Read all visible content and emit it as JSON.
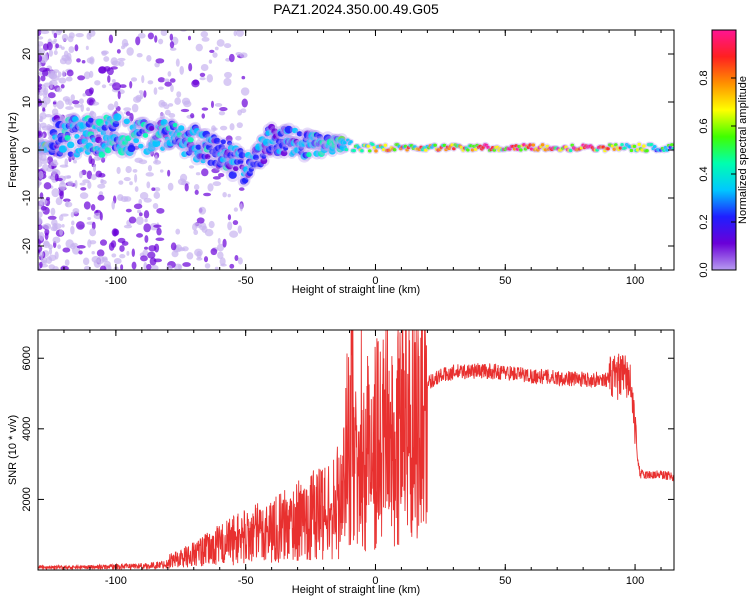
{
  "title": "PAZ1.2024.350.00.49.G05",
  "chart_data": [
    {
      "type": "heatmap",
      "xlabel": "Height of straight line (km)",
      "ylabel": "Frequency (Hz)",
      "xlim": [
        -130,
        115
      ],
      "ylim": [
        -25,
        25
      ],
      "x_ticks": [
        -100,
        -50,
        0,
        50,
        100
      ],
      "y_ticks": [
        -20,
        -10,
        0,
        10,
        20
      ],
      "colorbar": {
        "label": "Normalized spectral amplitude",
        "range": [
          0,
          1
        ],
        "ticks": [
          "0.0",
          "0.2",
          "0.4",
          "0.6",
          "0.8"
        ],
        "palette": [
          "#b79cf0",
          "#6a00d8",
          "#1f1fff",
          "#00c8ff",
          "#00ffb0",
          "#40ff00",
          "#ffff00",
          "#ff9000",
          "#ff2020",
          "#ff1493"
        ]
      },
      "ridge": [
        {
          "x": -125,
          "freq": 3,
          "spread": 4,
          "amp": 0.35
        },
        {
          "x": -100,
          "freq": 3,
          "spread": 4,
          "amp": 0.4
        },
        {
          "x": -80,
          "freq": 3,
          "spread": 3,
          "amp": 0.35
        },
        {
          "x": -60,
          "freq": 0,
          "spread": 3.5,
          "amp": 0.35
        },
        {
          "x": -50,
          "freq": -4,
          "spread": 3,
          "amp": 0.3
        },
        {
          "x": -40,
          "freq": 2,
          "spread": 3,
          "amp": 0.3
        },
        {
          "x": -25,
          "freq": 1,
          "spread": 2.5,
          "amp": 0.35
        },
        {
          "x": -12,
          "freq": 1,
          "spread": 1.2,
          "amp": 0.5
        },
        {
          "x": 0,
          "freq": 0.5,
          "spread": 0.8,
          "amp": 0.65
        },
        {
          "x": 20,
          "freq": 0.5,
          "spread": 0.6,
          "amp": 0.75
        },
        {
          "x": 50,
          "freq": 0.5,
          "spread": 0.6,
          "amp": 0.9
        },
        {
          "x": 80,
          "freq": 0.5,
          "spread": 0.6,
          "amp": 0.95
        },
        {
          "x": 100,
          "freq": 0.5,
          "spread": 0.7,
          "amp": 0.6
        },
        {
          "x": 115,
          "freq": 0.5,
          "spread": 0.7,
          "amp": 0.5
        }
      ]
    },
    {
      "type": "line",
      "xlabel": "Height of straight line (km)",
      "ylabel": "SNR (10 * v/v)",
      "xlim": [
        -130,
        115
      ],
      "ylim": [
        0,
        6800
      ],
      "x_ticks": [
        -100,
        -50,
        0,
        50,
        100
      ],
      "y_ticks": [
        2000,
        4000,
        6000
      ],
      "series": [
        {
          "color": "#e8302f",
          "x": [
            -130,
            -115,
            -100,
            -85,
            -75,
            -65,
            -55,
            -45,
            -35,
            -25,
            -20,
            -15,
            -12,
            -10,
            -9,
            -7,
            -5,
            -3,
            0,
            5,
            10,
            15,
            20,
            25,
            30,
            40,
            50,
            60,
            70,
            80,
            90,
            95,
            98,
            100,
            101,
            102,
            105,
            110,
            115
          ],
          "y": [
            120,
            120,
            150,
            200,
            350,
            600,
            900,
            1100,
            1300,
            1600,
            1800,
            1800,
            2500,
            4500,
            5000,
            2000,
            3200,
            3500,
            3800,
            4000,
            4200,
            4800,
            5300,
            5500,
            5600,
            5650,
            5600,
            5500,
            5450,
            5400,
            5400,
            5500,
            5400,
            4000,
            3200,
            2700,
            2700,
            2700,
            2650
          ]
        }
      ]
    }
  ]
}
